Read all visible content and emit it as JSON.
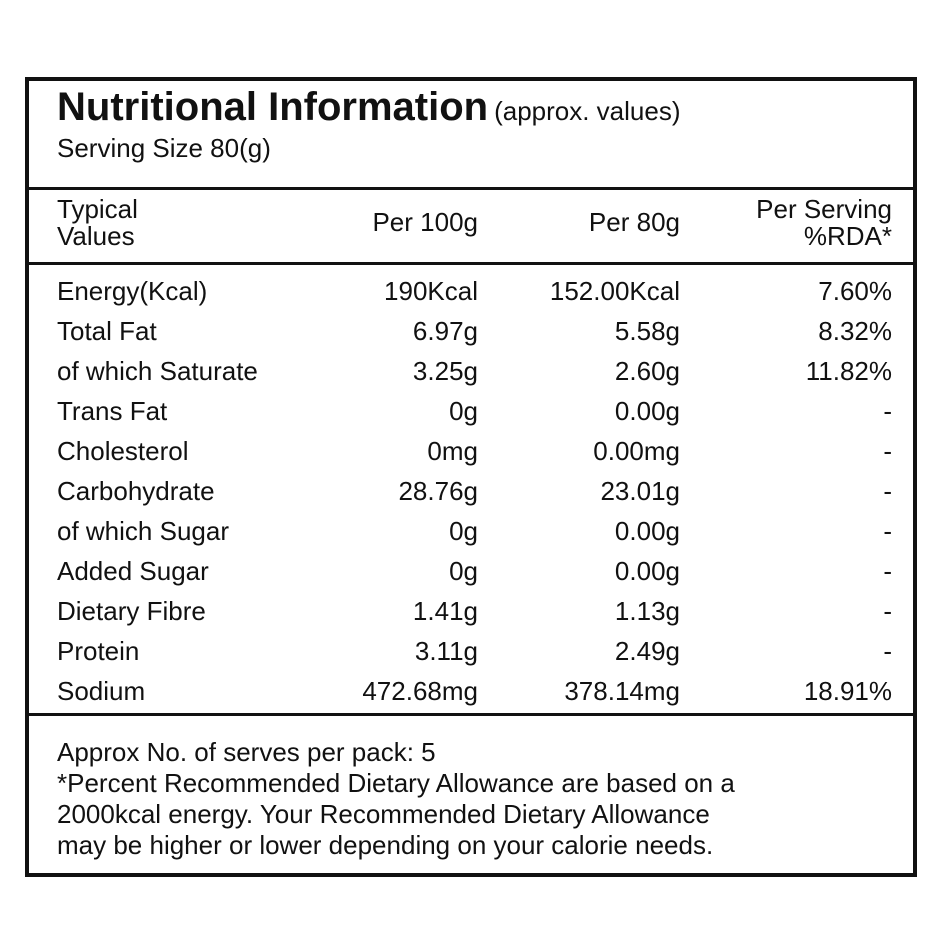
{
  "title": "Nutritional Information",
  "title_note": "(approx. values)",
  "serving_size": "Serving Size 80(g)",
  "header": {
    "col0_line1": "Typical",
    "col0_line2": "Values",
    "col1": "Per 100g",
    "col2": "Per 80g",
    "col3_line1": "Per Serving",
    "col3_line2": "%RDA*"
  },
  "rows": [
    {
      "name": "Energy(Kcal)",
      "per100": "190Kcal",
      "per80": "152.00Kcal",
      "rda": "7.60%"
    },
    {
      "name": "Total Fat",
      "per100": "6.97g",
      "per80": "5.58g",
      "rda": "8.32%"
    },
    {
      "name": "of which Saturate",
      "per100": "3.25g",
      "per80": "2.60g",
      "rda": "11.82%"
    },
    {
      "name": "Trans Fat",
      "per100": "0g",
      "per80": "0.00g",
      "rda": "-"
    },
    {
      "name": "Cholesterol",
      "per100": "0mg",
      "per80": "0.00mg",
      "rda": "-"
    },
    {
      "name": "Carbohydrate",
      "per100": "28.76g",
      "per80": "23.01g",
      "rda": "-"
    },
    {
      "name": "of which Sugar",
      "per100": "0g",
      "per80": "0.00g",
      "rda": "-"
    },
    {
      "name": "Added Sugar",
      "per100": "0g",
      "per80": "0.00g",
      "rda": "-"
    },
    {
      "name": "Dietary Fibre",
      "per100": "1.41g",
      "per80": "1.13g",
      "rda": "-"
    },
    {
      "name": "Protein",
      "per100": "3.11g",
      "per80": "2.49g",
      "rda": "-"
    },
    {
      "name": "Sodium",
      "per100": "472.68mg",
      "per80": "378.14mg",
      "rda": "18.91%"
    }
  ],
  "footer": {
    "serves": "Approx No. of serves per pack: 5",
    "note1": "*Percent Recommended Dietary Allowance are based on a",
    "note2": "2000kcal energy. Your Recommended Dietary Allowance",
    "note3": "may be higher or lower depending on your calorie needs."
  }
}
